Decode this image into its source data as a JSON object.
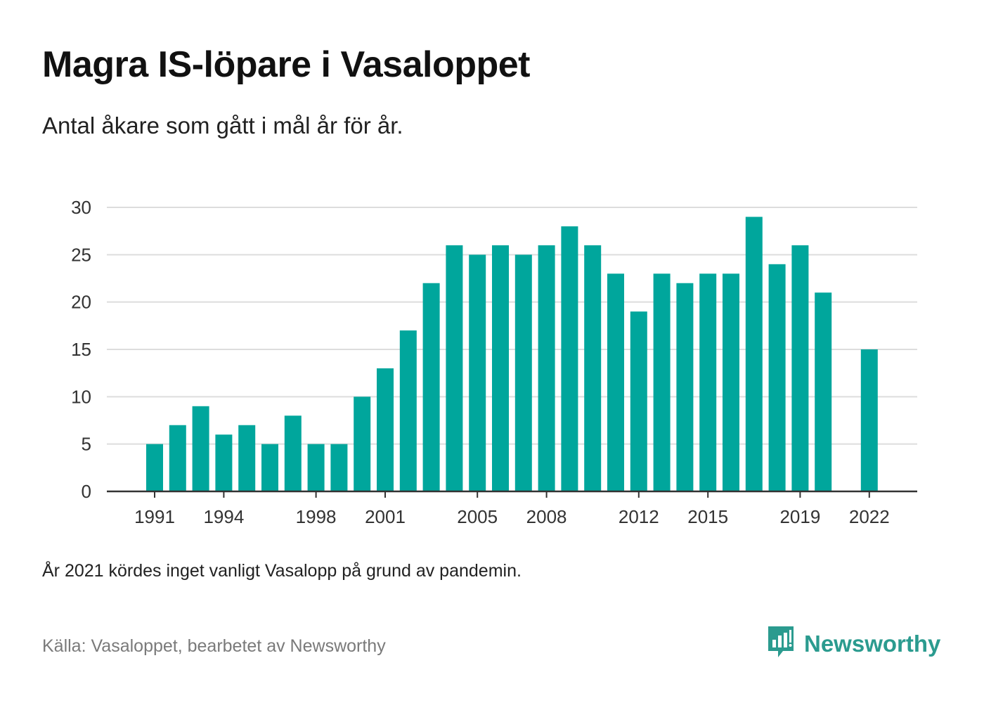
{
  "header": {
    "title": "Magra IS-löpare i Vasaloppet",
    "subtitle": "Antal åkare som gått i mål år för år."
  },
  "footer": {
    "note": "År 2021 kördes inget vanligt Vasalopp på grund av pandemin.",
    "source": "Källa: Vasaloppet, bearbetet av Newsworthy",
    "brand_name": "Newsworthy",
    "brand_icon": "bar-chart-speech-bubble-icon"
  },
  "colors": {
    "bar": "#00a69c",
    "brand": "#2b9b8f",
    "grid": "#dddddd",
    "axis": "#333333"
  },
  "chart_data": {
    "type": "bar",
    "title": "Magra IS-löpare i Vasaloppet",
    "subtitle": "Antal åkare som gått i mål år för år.",
    "xlabel": "",
    "ylabel": "",
    "grid": true,
    "ylim": [
      0,
      30
    ],
    "yticks": [
      0,
      5,
      10,
      15,
      20,
      25,
      30
    ],
    "xticks": [
      1991,
      1994,
      1998,
      2001,
      2005,
      2008,
      2012,
      2015,
      2019,
      2022
    ],
    "categories": [
      1991,
      1992,
      1993,
      1994,
      1995,
      1996,
      1997,
      1998,
      1999,
      2000,
      2001,
      2002,
      2003,
      2004,
      2005,
      2006,
      2007,
      2008,
      2009,
      2010,
      2011,
      2012,
      2013,
      2014,
      2015,
      2016,
      2017,
      2018,
      2019,
      2020,
      2021,
      2022
    ],
    "values": [
      5,
      7,
      9,
      6,
      7,
      5,
      8,
      5,
      5,
      10,
      13,
      17,
      22,
      26,
      25,
      26,
      25,
      26,
      28,
      26,
      23,
      19,
      23,
      22,
      23,
      23,
      29,
      24,
      26,
      21,
      null,
      15
    ]
  }
}
